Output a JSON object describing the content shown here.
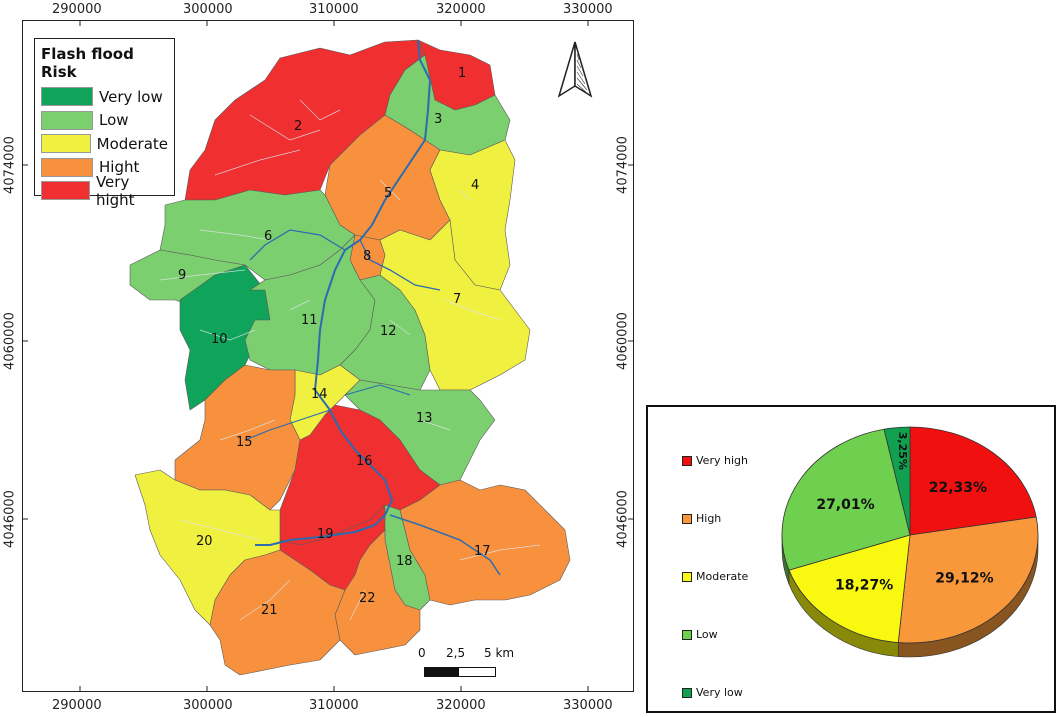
{
  "map": {
    "x_ticks": [
      "290000",
      "300000",
      "310000",
      "320000",
      "330000"
    ],
    "y_ticks": [
      "4074000",
      "4060000",
      "4046000"
    ],
    "legend": {
      "title": "Flash flood Risk",
      "items": [
        {
          "label": "Very low",
          "color": "#10a35a"
        },
        {
          "label": "Low",
          "color": "#7ccf6f"
        },
        {
          "label": "Moderate",
          "color": "#f0f040"
        },
        {
          "label": "Hight",
          "color": "#f7913d"
        },
        {
          "label": "Very hight",
          "color": "#f03030"
        }
      ]
    },
    "scale": {
      "labels": [
        "0",
        "2,5",
        "5 km"
      ]
    },
    "subbasins": [
      {
        "id": "1",
        "class": "Very hight"
      },
      {
        "id": "2",
        "class": "Very hight"
      },
      {
        "id": "3",
        "class": "Low"
      },
      {
        "id": "4",
        "class": "Moderate"
      },
      {
        "id": "5",
        "class": "Hight"
      },
      {
        "id": "6",
        "class": "Low"
      },
      {
        "id": "7",
        "class": "Moderate"
      },
      {
        "id": "8",
        "class": "Hight"
      },
      {
        "id": "9",
        "class": "Low"
      },
      {
        "id": "10",
        "class": "Very low"
      },
      {
        "id": "11",
        "class": "Low"
      },
      {
        "id": "12",
        "class": "Low"
      },
      {
        "id": "13",
        "class": "Low"
      },
      {
        "id": "14",
        "class": "Moderate"
      },
      {
        "id": "15",
        "class": "Hight"
      },
      {
        "id": "16",
        "class": "Very hight"
      },
      {
        "id": "17",
        "class": "Hight"
      },
      {
        "id": "18",
        "class": "Low"
      },
      {
        "id": "19",
        "class": "Very hight"
      },
      {
        "id": "20",
        "class": "Moderate"
      },
      {
        "id": "21",
        "class": "Hight"
      },
      {
        "id": "22",
        "class": "Hight"
      }
    ]
  },
  "chart_data": {
    "type": "pie",
    "legend_items": [
      "Very high",
      "High",
      "Moderate",
      "Low",
      "Very low"
    ],
    "slices": [
      {
        "name": "Very high",
        "value": 22.33,
        "label": "22,33%",
        "color": "#f01010"
      },
      {
        "name": "High",
        "value": 29.12,
        "label": "29,12%",
        "color": "#f8983a"
      },
      {
        "name": "Moderate",
        "value": 18.27,
        "label": "18,27%",
        "color": "#f8f810"
      },
      {
        "name": "Low",
        "value": 27.01,
        "label": "27,01%",
        "color": "#6fcf4f"
      },
      {
        "name": "Very low",
        "value": 3.25,
        "label": "3,25%",
        "color": "#10a050"
      }
    ]
  }
}
